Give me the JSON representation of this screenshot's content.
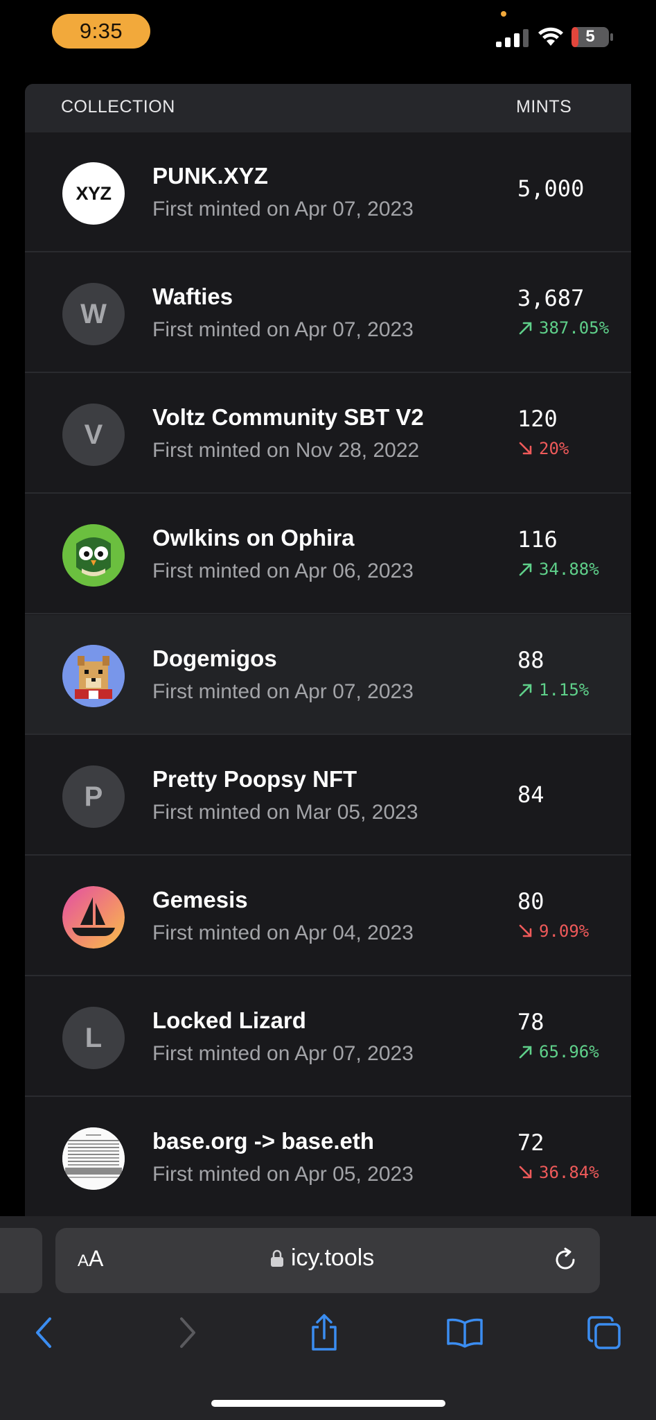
{
  "status_bar": {
    "time": "9:35",
    "battery_level": "5",
    "icons": [
      "signal-icon",
      "wifi-icon",
      "battery-icon"
    ]
  },
  "table": {
    "headers": {
      "collection": "COLLECTION",
      "mints": "MINTS"
    },
    "rows": [
      {
        "name": "PUNK.XYZ",
        "first_minted": "First minted on Apr 07, 2023",
        "mints": "5,000",
        "change": null,
        "avatar": "XYZ"
      },
      {
        "name": "Wafties",
        "first_minted": "First minted on Apr 07, 2023",
        "mints": "3,687",
        "change": "387.05%",
        "direction": "up",
        "avatar": "W"
      },
      {
        "name": "Voltz Community SBT V2",
        "first_minted": "First minted on Nov 28, 2022",
        "mints": "120",
        "change": "20%",
        "direction": "down",
        "avatar": "V"
      },
      {
        "name": "Owlkins on Ophira",
        "first_minted": "First minted on Apr 06, 2023",
        "mints": "116",
        "change": "34.88%",
        "direction": "up",
        "avatar": "owl-image"
      },
      {
        "name": "Dogemigos",
        "first_minted": "First minted on Apr 07, 2023",
        "mints": "88",
        "change": "1.15%",
        "direction": "up",
        "avatar": "doge-image"
      },
      {
        "name": "Pretty Poopsy NFT",
        "first_minted": "First minted on Mar 05, 2023",
        "mints": "84",
        "change": null,
        "avatar": "P"
      },
      {
        "name": "Gemesis",
        "first_minted": "First minted on Apr 04, 2023",
        "mints": "80",
        "change": "9.09%",
        "direction": "down",
        "avatar": "ship-image"
      },
      {
        "name": "Locked Lizard",
        "first_minted": "First minted on Apr 07, 2023",
        "mints": "78",
        "change": "65.96%",
        "direction": "up",
        "avatar": "L"
      },
      {
        "name": "base.org -> base.eth",
        "first_minted": "First minted on Apr 05, 2023",
        "mints": "72",
        "change": "36.84%",
        "direction": "down",
        "avatar": "document-image"
      }
    ]
  },
  "browser": {
    "aa_small": "A",
    "aa_big": "A",
    "url": "icy.tools",
    "toolbar": [
      "back-icon",
      "forward-icon",
      "share-icon",
      "bookmarks-icon",
      "tabs-icon"
    ]
  },
  "colors": {
    "accent_orange": "#f2a93b",
    "up_green": "#5fd08a",
    "down_red": "#ef5a5a",
    "ios_blue": "#3b8df1"
  }
}
